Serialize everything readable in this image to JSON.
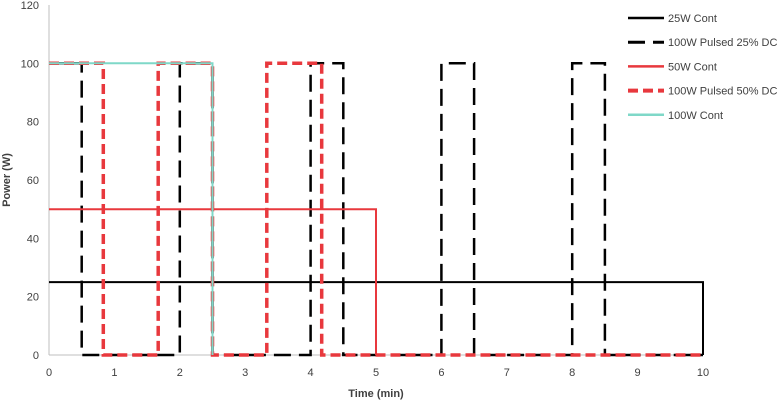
{
  "chart_data": {
    "type": "line",
    "title": "",
    "xlabel": "Time (min)",
    "ylabel": "Power (W)",
    "xlim": [
      0,
      10
    ],
    "ylim": [
      0,
      120
    ],
    "x_ticks": [
      "0",
      "1",
      "2",
      "3",
      "4",
      "5",
      "6",
      "7",
      "8",
      "9",
      "10"
    ],
    "y_ticks": [
      "0",
      "20",
      "40",
      "60",
      "80",
      "100",
      "120"
    ],
    "grid": false,
    "legend_position": "right",
    "series": [
      {
        "name": "25W Cont",
        "color": "#000000",
        "dash": "solid",
        "points": [
          [
            0,
            25
          ],
          [
            10,
            25
          ],
          [
            10,
            0
          ]
        ]
      },
      {
        "name": "100W Pulsed 25% DC",
        "color": "#000000",
        "dash": "long-dash",
        "points": [
          [
            0,
            100
          ],
          [
            0.5,
            100
          ],
          [
            0.5,
            0
          ],
          [
            2.0,
            0
          ],
          [
            2.0,
            100
          ],
          [
            2.5,
            100
          ],
          [
            2.5,
            0
          ],
          [
            4.0,
            0
          ],
          [
            4.0,
            100
          ],
          [
            4.5,
            100
          ],
          [
            4.5,
            0
          ],
          [
            6.0,
            0
          ],
          [
            6.0,
            100
          ],
          [
            6.5,
            100
          ],
          [
            6.5,
            0
          ],
          [
            8.0,
            0
          ],
          [
            8.0,
            100
          ],
          [
            8.5,
            100
          ],
          [
            8.5,
            0
          ],
          [
            10.0,
            0
          ]
        ]
      },
      {
        "name": "50W Cont",
        "color": "#e8383d",
        "dash": "solid",
        "points": [
          [
            0,
            50
          ],
          [
            5,
            50
          ],
          [
            5,
            0
          ]
        ]
      },
      {
        "name": "100W Pulsed 50% DC",
        "color": "#e8383d",
        "dash": "dash",
        "points": [
          [
            0,
            100
          ],
          [
            0.83,
            100
          ],
          [
            0.83,
            0
          ],
          [
            1.67,
            0
          ],
          [
            1.67,
            100
          ],
          [
            2.5,
            100
          ],
          [
            2.5,
            0
          ],
          [
            3.33,
            0
          ],
          [
            3.33,
            100
          ],
          [
            4.17,
            100
          ],
          [
            4.17,
            0
          ],
          [
            10,
            0
          ]
        ]
      },
      {
        "name": "100W Cont",
        "color": "#7fd8c8",
        "dash": "solid",
        "points": [
          [
            0,
            100
          ],
          [
            2.5,
            100
          ],
          [
            2.5,
            0
          ]
        ]
      }
    ]
  }
}
